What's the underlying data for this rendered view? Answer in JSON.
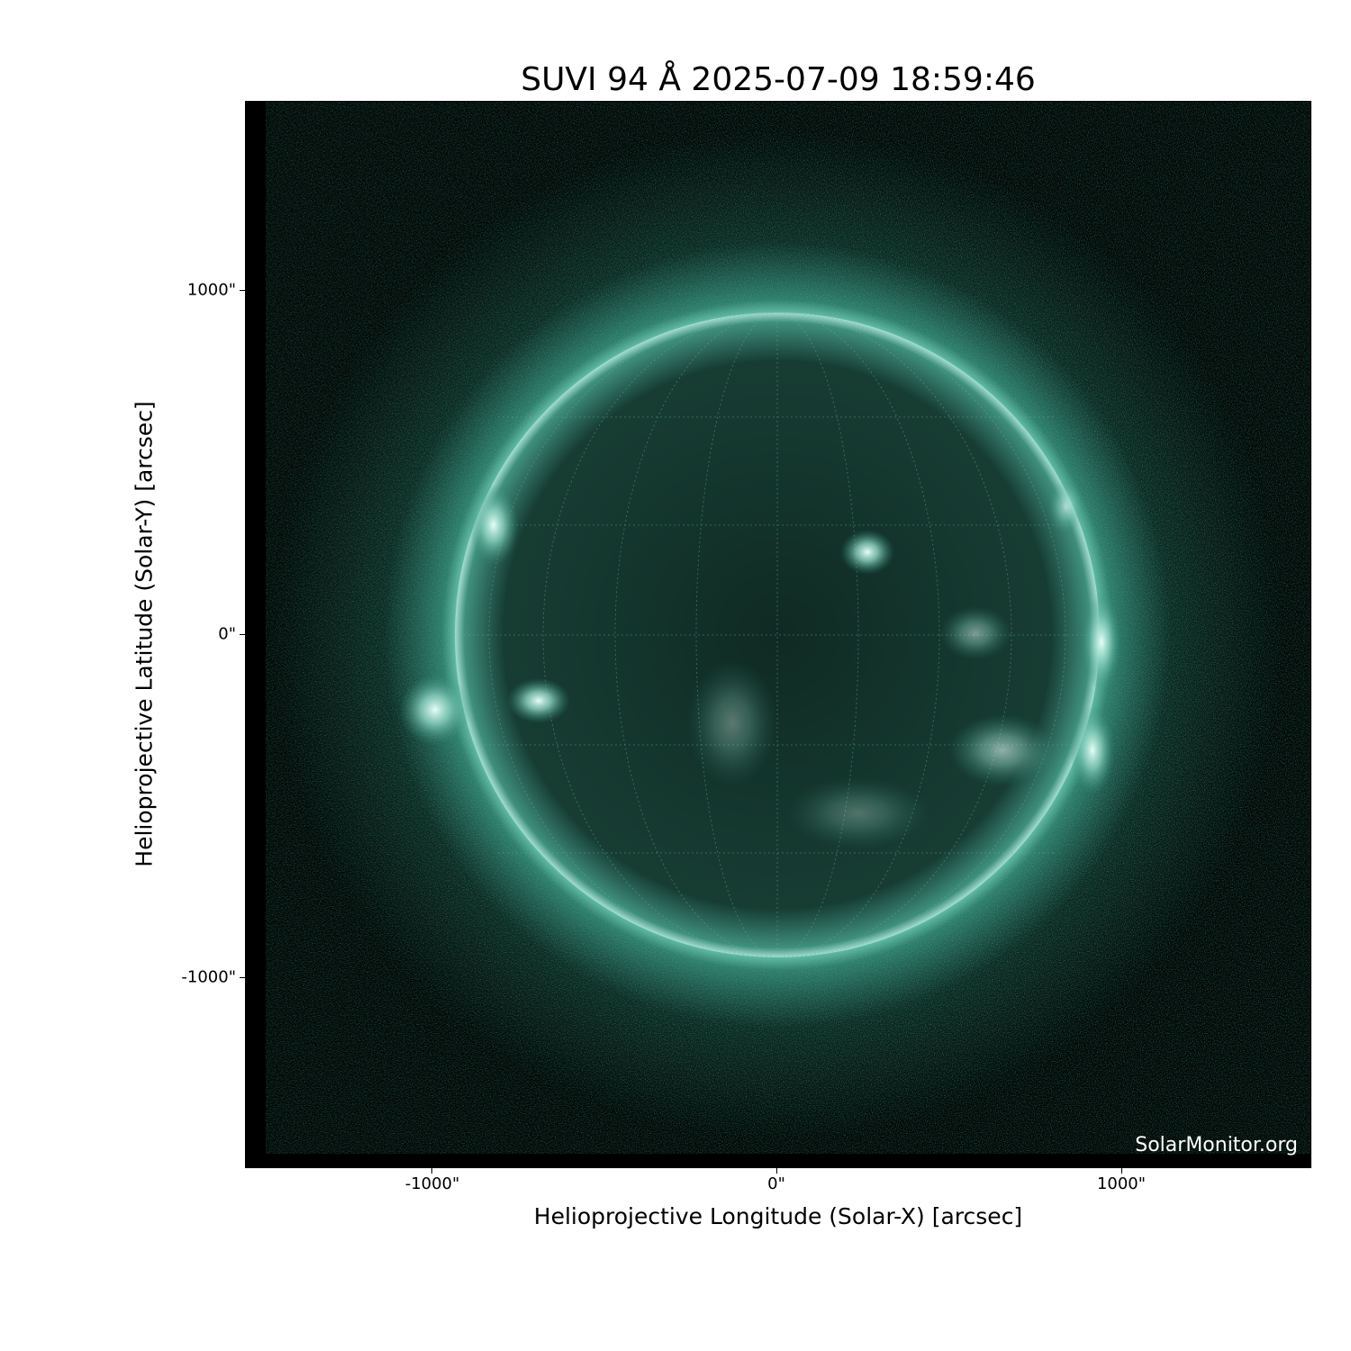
{
  "title": "SUVI 94 Å 2025-07-09 18:59:46",
  "x_axis": {
    "label": "Helioprojective Longitude (Solar-X) [arcsec]",
    "ticks": [
      "-1000\"",
      "0\"",
      "1000\""
    ]
  },
  "y_axis": {
    "label": "Helioprojective Latitude (Solar-Y) [arcsec]",
    "ticks": [
      "1000\"",
      "0\"",
      "-1000\""
    ]
  },
  "watermark": "SolarMonitor.org",
  "colors": {
    "colormap_mid": "#2f8c78",
    "colormap_high": "#e8fff8",
    "background": "#000000"
  }
}
